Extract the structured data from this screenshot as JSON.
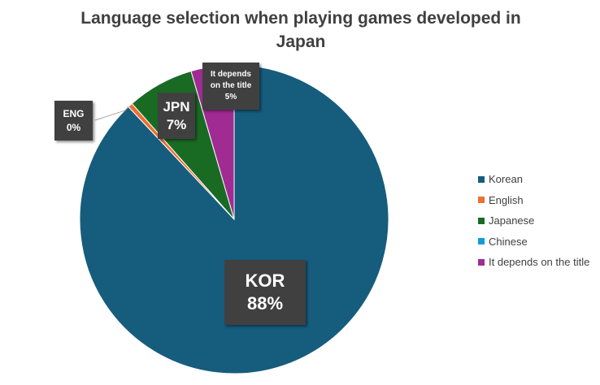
{
  "chart_data": {
    "type": "pie",
    "title": "Language selection when playing games developed in Japan",
    "slices": [
      {
        "name": "Korean",
        "value": 88,
        "color": "#165C7D"
      },
      {
        "name": "English",
        "value": 0.5,
        "color": "#E97132"
      },
      {
        "name": "Japanese",
        "value": 7,
        "color": "#196B24"
      },
      {
        "name": "Chinese",
        "value": 0,
        "color": "#0F9ED5"
      },
      {
        "name": "It depends on the title",
        "value": 4.5,
        "color": "#A02B93"
      }
    ],
    "data_labels": {
      "korean": {
        "name": "KOR",
        "percent": "88%"
      },
      "english": {
        "name": "ENG",
        "percent": "0%"
      },
      "japanese": {
        "name": "JPN",
        "percent": "7%"
      },
      "depends": {
        "name_line1": "It depends",
        "name_line2": "on the title",
        "percent": "5%"
      }
    },
    "legend": {
      "position": "right",
      "items": [
        "Korean",
        "English",
        "Japanese",
        "Chinese",
        "It depends on the title"
      ]
    }
  }
}
